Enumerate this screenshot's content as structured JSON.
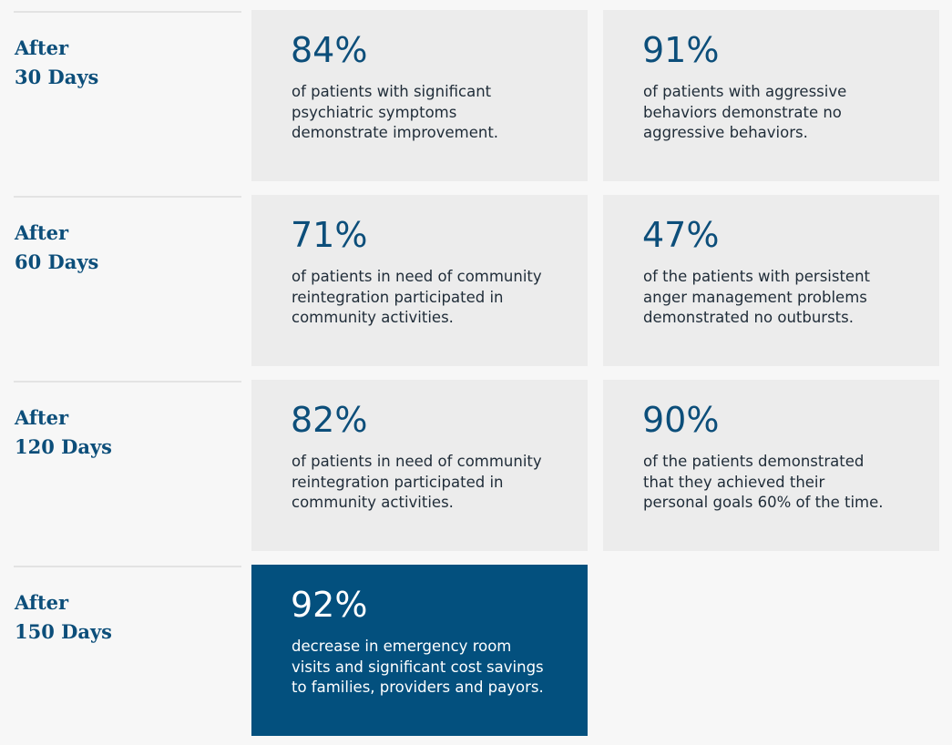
{
  "rows": [
    {
      "label": [
        "After",
        "30 Days"
      ],
      "cards": [
        {
          "stat": "84%",
          "lines": [
            "of patients with significant",
            "psychiatric symptoms",
            "demonstrate improvement."
          ]
        },
        {
          "stat": "91%",
          "lines": [
            "of patients with aggressive",
            "behaviors demonstrate no",
            "aggressive behaviors."
          ]
        }
      ]
    },
    {
      "label": [
        "After",
        "60 Days"
      ],
      "cards": [
        {
          "stat": "71%",
          "lines": [
            "of patients in need of community",
            "reintegration participated in",
            "community activities."
          ]
        },
        {
          "stat": "47%",
          "lines": [
            "of the patients with persistent",
            "anger management problems",
            "demonstrated no outbursts."
          ]
        }
      ]
    },
    {
      "label": [
        "After",
        "120 Days"
      ],
      "cards": [
        {
          "stat": "82%",
          "lines": [
            "of patients in need of community",
            "reintegration participated in",
            "community activities."
          ]
        },
        {
          "stat": "90%",
          "lines": [
            "of the patients demonstrated",
            "that they achieved their",
            "personal goals 60% of the time."
          ]
        }
      ]
    },
    {
      "label": [
        "After",
        "150 Days"
      ],
      "cards": [
        {
          "stat": "92%",
          "lines": [
            "decrease in emergency room",
            "visits and significant cost savings",
            "to families, providers and payors."
          ],
          "highlight": true
        }
      ]
    }
  ]
}
